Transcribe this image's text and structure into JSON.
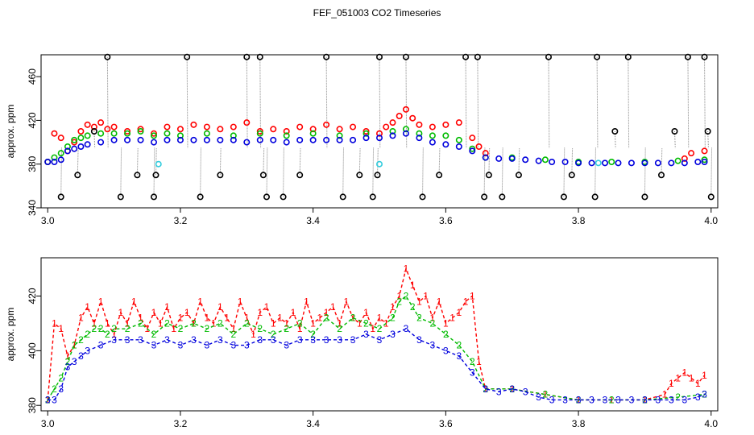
{
  "title": "FEF_051003  CO2 Timeseries",
  "colors": {
    "s1": "#ff0000",
    "s2": "#00bb00",
    "s3": "#0000dd",
    "spike": "#000000",
    "cyan": "#33ccdd",
    "vline": "#888888"
  },
  "chart_data": [
    {
      "type": "scatter",
      "ylabel": "approx. ppm",
      "xlabel": "",
      "xlim": [
        2.99,
        4.01
      ],
      "ylim": [
        340,
        480
      ],
      "xticks": [
        "3.0",
        "3.2",
        "3.4",
        "3.6",
        "3.8",
        "4.0"
      ],
      "xtick_values": [
        3.0,
        3.2,
        3.4,
        3.6,
        3.8,
        4.0
      ],
      "yticks": [
        "340",
        "380",
        "420",
        "460"
      ],
      "ytick_values": [
        340,
        380,
        420,
        460
      ],
      "grid": false,
      "series": [
        {
          "key": "s1",
          "color": "#ff0000",
          "marker": "circle",
          "x": [
            3.0,
            3.01,
            3.02,
            3.03,
            3.04,
            3.05,
            3.06,
            3.07,
            3.08,
            3.09,
            3.1,
            3.12,
            3.14,
            3.16,
            3.18,
            3.2,
            3.22,
            3.24,
            3.26,
            3.28,
            3.3,
            3.32,
            3.34,
            3.36,
            3.38,
            3.4,
            3.42,
            3.44,
            3.46,
            3.48,
            3.5,
            3.51,
            3.52,
            3.53,
            3.54,
            3.55,
            3.56,
            3.58,
            3.6,
            3.62,
            3.64,
            3.65,
            3.66,
            3.96,
            3.97,
            3.99
          ],
          "y": [
            382,
            408,
            404,
            392,
            400,
            410,
            416,
            414,
            418,
            412,
            414,
            410,
            412,
            408,
            414,
            412,
            416,
            414,
            412,
            414,
            418,
            410,
            412,
            410,
            414,
            412,
            416,
            412,
            414,
            410,
            408,
            414,
            418,
            424,
            430,
            422,
            416,
            414,
            416,
            418,
            404,
            396,
            390,
            385,
            390,
            392
          ]
        },
        {
          "key": "s2",
          "color": "#00bb00",
          "marker": "circle",
          "x": [
            3.0,
            3.01,
            3.02,
            3.03,
            3.04,
            3.05,
            3.06,
            3.08,
            3.1,
            3.12,
            3.14,
            3.16,
            3.18,
            3.2,
            3.24,
            3.28,
            3.32,
            3.36,
            3.4,
            3.44,
            3.48,
            3.52,
            3.54,
            3.56,
            3.58,
            3.6,
            3.62,
            3.64,
            3.66,
            3.7,
            3.75,
            3.8,
            3.85,
            3.9,
            3.95,
            3.99
          ],
          "y": [
            382,
            386,
            390,
            396,
            402,
            404,
            406,
            408,
            408,
            408,
            410,
            406,
            408,
            406,
            408,
            406,
            408,
            406,
            408,
            406,
            408,
            410,
            412,
            408,
            406,
            406,
            402,
            394,
            386,
            386,
            384,
            382,
            382,
            382,
            383,
            384
          ]
        },
        {
          "key": "s3",
          "color": "#0000dd",
          "marker": "circle",
          "x": [
            3.0,
            3.01,
            3.02,
            3.03,
            3.04,
            3.05,
            3.06,
            3.08,
            3.1,
            3.12,
            3.14,
            3.16,
            3.18,
            3.2,
            3.22,
            3.24,
            3.26,
            3.28,
            3.3,
            3.32,
            3.34,
            3.36,
            3.38,
            3.4,
            3.42,
            3.44,
            3.46,
            3.48,
            3.5,
            3.52,
            3.54,
            3.56,
            3.58,
            3.6,
            3.62,
            3.64,
            3.66,
            3.68,
            3.7,
            3.72,
            3.74,
            3.76,
            3.78,
            3.8,
            3.82,
            3.84,
            3.86,
            3.88,
            3.9,
            3.92,
            3.94,
            3.96,
            3.98,
            3.99
          ],
          "y": [
            382,
            382,
            384,
            392,
            394,
            396,
            398,
            400,
            402,
            402,
            402,
            400,
            402,
            402,
            402,
            402,
            402,
            402,
            400,
            402,
            402,
            400,
            402,
            402,
            402,
            402,
            402,
            404,
            404,
            406,
            408,
            404,
            400,
            398,
            396,
            392,
            386,
            385,
            385,
            384,
            383,
            382,
            382,
            381,
            381,
            381,
            381,
            381,
            381,
            381,
            381,
            381,
            382,
            382
          ]
        },
        {
          "key": "spike",
          "color": "#000000",
          "marker": "circle",
          "x": [
            3.02,
            3.045,
            3.07,
            3.09,
            3.11,
            3.135,
            3.16,
            3.163,
            3.21,
            3.23,
            3.26,
            3.3,
            3.32,
            3.325,
            3.33,
            3.355,
            3.38,
            3.42,
            3.445,
            3.47,
            3.49,
            3.497,
            3.5,
            3.54,
            3.565,
            3.59,
            3.63,
            3.648,
            3.658,
            3.665,
            3.685,
            3.71,
            3.755,
            3.778,
            3.79,
            3.825,
            3.828,
            3.855,
            3.875,
            3.9,
            3.925,
            3.945,
            3.965,
            3.99,
            3.995,
            4.0
          ],
          "y": [
            350,
            370,
            410,
            478,
            350,
            370,
            350,
            370,
            478,
            350,
            370,
            478,
            478,
            370,
            350,
            350,
            370,
            478,
            350,
            370,
            350,
            370,
            478,
            478,
            350,
            370,
            478,
            478,
            350,
            370,
            350,
            370,
            478,
            350,
            370,
            350,
            478,
            410,
            478,
            350,
            370,
            410,
            478,
            478,
            410,
            350
          ]
        },
        {
          "key": "cyan",
          "color": "#33ccdd",
          "marker": "circle",
          "x": [
            3.167,
            3.5,
            3.83
          ],
          "y": [
            380,
            380,
            381
          ]
        }
      ]
    },
    {
      "type": "line",
      "ylabel": "approx. ppm",
      "xlabel": "",
      "xlim": [
        2.99,
        4.01
      ],
      "ylim": [
        378,
        434
      ],
      "xticks": [
        "3.0",
        "3.2",
        "3.4",
        "3.6",
        "3.8",
        "4.0"
      ],
      "xtick_values": [
        3.0,
        3.2,
        3.4,
        3.6,
        3.8,
        4.0
      ],
      "yticks": [
        "380",
        "400",
        "420"
      ],
      "ytick_values": [
        380,
        400,
        420
      ],
      "grid": false,
      "series": [
        {
          "key": "s1",
          "color": "#ff0000",
          "label": "1",
          "line": "dashed",
          "marker": "text",
          "x": [
            3.0,
            3.01,
            3.02,
            3.03,
            3.04,
            3.05,
            3.06,
            3.07,
            3.08,
            3.09,
            3.1,
            3.11,
            3.12,
            3.13,
            3.14,
            3.15,
            3.16,
            3.17,
            3.18,
            3.19,
            3.2,
            3.21,
            3.22,
            3.23,
            3.24,
            3.25,
            3.26,
            3.27,
            3.28,
            3.29,
            3.3,
            3.31,
            3.32,
            3.33,
            3.34,
            3.35,
            3.36,
            3.37,
            3.38,
            3.39,
            3.4,
            3.41,
            3.42,
            3.43,
            3.44,
            3.45,
            3.46,
            3.47,
            3.48,
            3.49,
            3.5,
            3.51,
            3.52,
            3.53,
            3.54,
            3.55,
            3.56,
            3.57,
            3.58,
            3.59,
            3.6,
            3.61,
            3.62,
            3.63,
            3.64,
            3.65,
            3.66,
            3.7,
            3.75,
            3.8,
            3.85,
            3.9,
            3.93,
            3.94,
            3.95,
            3.96,
            3.97,
            3.98,
            3.99
          ],
          "y": [
            382,
            410,
            408,
            398,
            402,
            412,
            416,
            410,
            418,
            410,
            406,
            414,
            410,
            418,
            412,
            408,
            414,
            410,
            416,
            408,
            412,
            414,
            410,
            418,
            412,
            410,
            416,
            412,
            408,
            418,
            412,
            406,
            414,
            416,
            410,
            412,
            410,
            414,
            408,
            418,
            410,
            412,
            414,
            416,
            410,
            418,
            412,
            410,
            414,
            408,
            412,
            410,
            416,
            420,
            430,
            424,
            418,
            420,
            412,
            418,
            410,
            412,
            414,
            418,
            420,
            396,
            386,
            386,
            384,
            382,
            382,
            382,
            384,
            388,
            390,
            392,
            390,
            388,
            391
          ]
        },
        {
          "key": "s2",
          "color": "#00bb00",
          "label": "2",
          "line": "dashed",
          "marker": "text",
          "x": [
            3.0,
            3.01,
            3.02,
            3.03,
            3.04,
            3.05,
            3.06,
            3.07,
            3.08,
            3.09,
            3.1,
            3.12,
            3.14,
            3.16,
            3.18,
            3.2,
            3.22,
            3.24,
            3.26,
            3.28,
            3.3,
            3.32,
            3.34,
            3.36,
            3.38,
            3.4,
            3.42,
            3.44,
            3.46,
            3.48,
            3.5,
            3.52,
            3.53,
            3.54,
            3.55,
            3.56,
            3.58,
            3.6,
            3.62,
            3.64,
            3.66,
            3.7,
            3.75,
            3.8,
            3.85,
            3.9,
            3.95,
            3.99
          ],
          "y": [
            382,
            386,
            390,
            396,
            402,
            404,
            406,
            408,
            408,
            406,
            408,
            408,
            410,
            406,
            410,
            408,
            410,
            408,
            410,
            406,
            410,
            408,
            406,
            408,
            410,
            406,
            412,
            408,
            412,
            410,
            408,
            412,
            418,
            420,
            416,
            412,
            410,
            406,
            402,
            396,
            386,
            386,
            384,
            382,
            382,
            382,
            383,
            384
          ]
        },
        {
          "key": "s3",
          "color": "#0000dd",
          "label": "3",
          "line": "dashed",
          "marker": "text",
          "x": [
            3.0,
            3.01,
            3.02,
            3.03,
            3.04,
            3.05,
            3.06,
            3.08,
            3.1,
            3.12,
            3.14,
            3.16,
            3.18,
            3.2,
            3.22,
            3.24,
            3.26,
            3.28,
            3.3,
            3.32,
            3.34,
            3.36,
            3.38,
            3.4,
            3.42,
            3.44,
            3.46,
            3.48,
            3.5,
            3.52,
            3.54,
            3.56,
            3.58,
            3.6,
            3.62,
            3.64,
            3.66,
            3.68,
            3.7,
            3.72,
            3.74,
            3.76,
            3.78,
            3.8,
            3.82,
            3.84,
            3.86,
            3.88,
            3.9,
            3.92,
            3.94,
            3.96,
            3.98,
            3.99
          ],
          "y": [
            382,
            382,
            386,
            394,
            396,
            398,
            400,
            402,
            404,
            404,
            404,
            402,
            404,
            402,
            404,
            402,
            404,
            402,
            402,
            404,
            404,
            402,
            404,
            404,
            404,
            404,
            404,
            406,
            404,
            406,
            408,
            404,
            402,
            400,
            398,
            392,
            386,
            385,
            386,
            385,
            383,
            382,
            382,
            382,
            382,
            382,
            382,
            382,
            382,
            382,
            382,
            382,
            383,
            384
          ]
        }
      ]
    }
  ]
}
